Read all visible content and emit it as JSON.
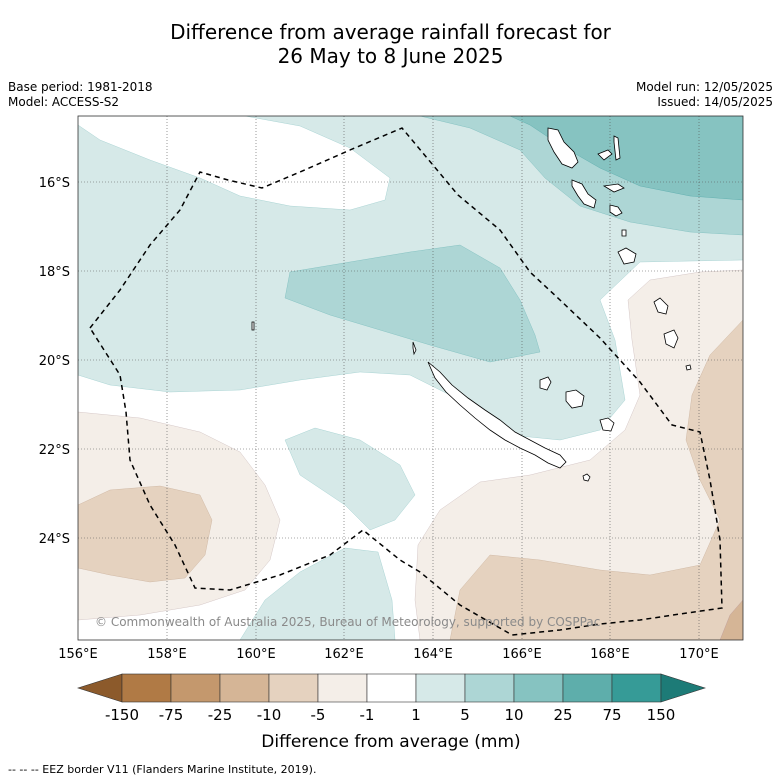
{
  "title": {
    "line1": "Difference from average rainfall forecast for",
    "line2": "26 May to 8 June 2025"
  },
  "meta_left": {
    "base_period": "Base period: 1981-2018",
    "model": "Model: ACCESS-S2"
  },
  "meta_right": {
    "model_run": "Model run: 12/05/2025",
    "issued": "Issued: 14/05/2025"
  },
  "axes": {
    "lat_ticks": [
      "16°S",
      "18°S",
      "20°S",
      "22°S",
      "24°S"
    ],
    "lon_ticks": [
      "156°E",
      "158°E",
      "160°E",
      "162°E",
      "164°E",
      "166°E",
      "168°E",
      "170°E"
    ]
  },
  "copyright": "© Commonwealth of Australia 2025, Bureau of Meteorology, supported by COSPPac",
  "colorbar": {
    "title": "Difference from average (mm)",
    "labels": [
      "-150",
      "-75",
      "-25",
      "-10",
      "-5",
      "-1",
      "1",
      "5",
      "10",
      "25",
      "75",
      "150"
    ],
    "colors": [
      "#8c5a2b",
      "#b07a45",
      "#c4986d",
      "#d5b596",
      "#e5d2bf",
      "#f4eee8",
      "#ffffff",
      "#d6e9e8",
      "#add6d5",
      "#86c3c1",
      "#5eaeab",
      "#369b97",
      "#1d7b77"
    ]
  },
  "footnote": "--  --  -- EEZ border V11 (Flanders Marine Institute, 2019)."
}
